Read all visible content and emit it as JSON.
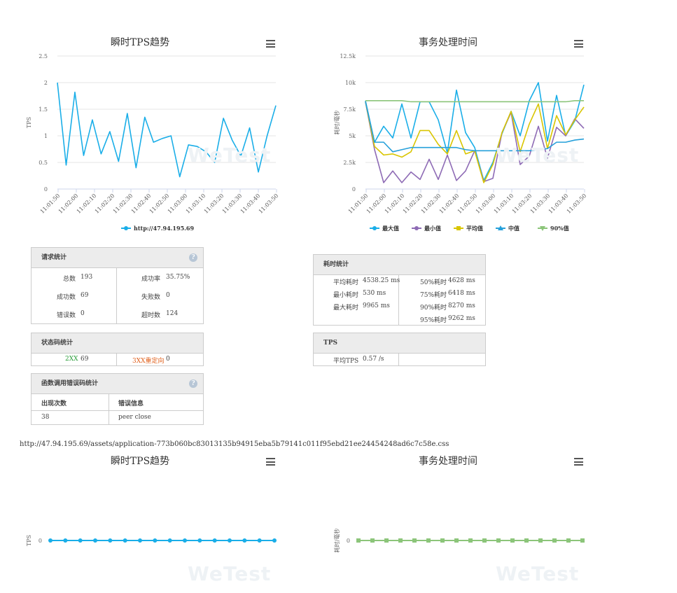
{
  "chart_data": [
    {
      "type": "line",
      "title": "瞬时TPS趋势",
      "ylabel": "TPS",
      "ylim": [
        0,
        2.5
      ],
      "yticks": [
        "0",
        "0.5",
        "1",
        "1.5",
        "2",
        "2.5"
      ],
      "xticks": [
        "11:01:50",
        "11:02:00",
        "11:02:10",
        "11:02:20",
        "11:02:30",
        "11:02:40",
        "11:02:50",
        "11:03:00",
        "11:03:10",
        "11:03:20",
        "11:03:30",
        "11:03:40",
        "11:03:50"
      ],
      "series": [
        {
          "name": "http://47.94.195.69",
          "color": "#1aaee8",
          "values": [
            2.0,
            0.45,
            1.82,
            0.63,
            1.3,
            0.66,
            1.08,
            0.52,
            1.42,
            0.4,
            1.35,
            0.88,
            0.95,
            1.0,
            0.23,
            0.83,
            0.8,
            0.7,
            0.5,
            1.33,
            0.92,
            0.62,
            1.15,
            0.32,
            1.0,
            1.57
          ]
        }
      ],
      "grid": true,
      "legend": "bottom"
    },
    {
      "type": "line",
      "title": "事务处理时间",
      "ylabel": "耗时/毫秒",
      "ylim": [
        0,
        12500
      ],
      "yticks": [
        "0",
        "2.5k",
        "5k",
        "7.5k",
        "10k",
        "12.5k"
      ],
      "xticks": [
        "11:01:50",
        "11:02:00",
        "11:02:10",
        "11:02:20",
        "11:02:30",
        "11:02:40",
        "11:02:50",
        "11:03:00",
        "11:03:10",
        "11:03:20",
        "11:03:30",
        "11:03:40",
        "11:03:50"
      ],
      "series": [
        {
          "name": "最大值",
          "color": "#1aaee8",
          "values": [
            8300,
            4400,
            5900,
            4800,
            8000,
            4800,
            8200,
            8200,
            6500,
            3400,
            9300,
            5300,
            3900,
            800,
            2500,
            5200,
            7300,
            5000,
            8300,
            10000,
            4500,
            8800,
            5000,
            6400,
            9800
          ]
        },
        {
          "name": "最小值",
          "color": "#8e6bb5",
          "values": [
            8200,
            3700,
            600,
            1700,
            600,
            1600,
            900,
            2800,
            900,
            3200,
            800,
            1700,
            3600,
            700,
            1000,
            5300,
            7200,
            2300,
            3100,
            5900,
            2900,
            5800,
            5000,
            6600,
            5700
          ]
        },
        {
          "name": "平均值",
          "color": "#d9c500",
          "values": [
            8200,
            4000,
            3200,
            3300,
            3000,
            3500,
            5500,
            5500,
            4200,
            3300,
            5500,
            3300,
            3600,
            600,
            2300,
            5300,
            7300,
            3500,
            6100,
            8000,
            3800,
            6900,
            5100,
            6500,
            7700
          ]
        },
        {
          "name": "中值",
          "color": "#26a0da",
          "values": [
            8200,
            4400,
            4400,
            3500,
            3700,
            3900,
            3900,
            3900,
            3900,
            3900,
            3900,
            3700,
            3600,
            3600,
            3600,
            3600,
            3600,
            3600,
            3600,
            3700,
            3800,
            4400,
            4400,
            4600,
            4700
          ]
        },
        {
          "name": "90%值",
          "color": "#8cc57a",
          "values": [
            8300,
            8300,
            8300,
            8300,
            8300,
            8200,
            8200,
            8200,
            8200,
            8200,
            8200,
            8200,
            8200,
            8200,
            8200,
            8200,
            8200,
            8200,
            8200,
            8200,
            8200,
            8200,
            8200,
            8300,
            8300
          ]
        }
      ],
      "grid": true,
      "legend": "bottom"
    },
    {
      "type": "line",
      "title": "瞬时TPS趋势",
      "ylabel": "TPS",
      "yticks": [
        "0"
      ],
      "series": [
        {
          "name": "",
          "color": "#1aaee8",
          "values": [
            0,
            0,
            0,
            0,
            0,
            0,
            0,
            0,
            0,
            0,
            0,
            0,
            0,
            0,
            0,
            0
          ]
        }
      ]
    },
    {
      "type": "line",
      "title": "事务处理时间",
      "ylabel": "耗时/毫秒",
      "yticks": [
        "0"
      ],
      "series": [
        {
          "name": "",
          "color": "#8cc57a",
          "values": [
            0,
            0,
            0,
            0,
            0,
            0,
            0,
            0,
            0,
            0,
            0,
            0,
            0,
            0,
            0,
            0,
            0
          ]
        }
      ]
    }
  ],
  "watermark": "WeTest",
  "request_stats": {
    "title": "请求统计",
    "help": "?",
    "total_label": "总数",
    "total": "193",
    "success_rate_label": "成功率",
    "success_rate": "35.75%",
    "success_label": "成功数",
    "success": "69",
    "fail_label": "失败数",
    "fail": "0",
    "error_label": "错误数",
    "error": "0",
    "timeout_label": "超时数",
    "timeout": "124"
  },
  "status_stats": {
    "title": "状态码统计",
    "c2xx_label": "2XX",
    "c2xx": "69",
    "c3xx_label": "3XX重定向",
    "c3xx": "0"
  },
  "func_errors": {
    "title": "函数调用错误码统计",
    "help": "?",
    "col_count": "出现次数",
    "col_msg": "错误信息",
    "count": "38",
    "msg": "peer close"
  },
  "latency_stats": {
    "title": "耗时统计",
    "avg_label": "平均耗时",
    "avg": "4538.25 ms",
    "min_label": "最小耗时",
    "min": "530 ms",
    "max_label": "最大耗时",
    "max": "9965 ms",
    "p50_label": "50%耗时",
    "p50": "4628 ms",
    "p75_label": "75%耗时",
    "p75": "6418 ms",
    "p90_label": "90%耗时",
    "p90": "8270 ms",
    "p95_label": "95%耗时",
    "p95": "9262 ms"
  },
  "tps_stats": {
    "title": "TPS",
    "avg_label": "平均TPS",
    "avg": "0.57 /s"
  },
  "css_url": "http://47.94.195.69/assets/application-773b060bc83013135b94915eba5b79141c011f95ebd21ee24454248ad6c7c58e.css"
}
